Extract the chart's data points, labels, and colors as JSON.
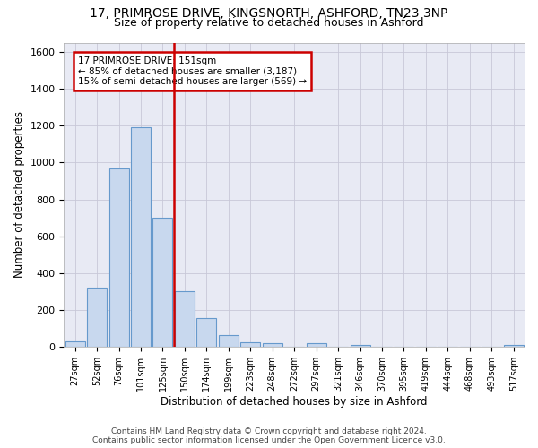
{
  "title1": "17, PRIMROSE DRIVE, KINGSNORTH, ASHFORD, TN23 3NP",
  "title2": "Size of property relative to detached houses in Ashford",
  "xlabel": "Distribution of detached houses by size in Ashford",
  "ylabel": "Number of detached properties",
  "footer1": "Contains HM Land Registry data © Crown copyright and database right 2024.",
  "footer2": "Contains public sector information licensed under the Open Government Licence v3.0.",
  "bar_labels": [
    "27sqm",
    "52sqm",
    "76sqm",
    "101sqm",
    "125sqm",
    "150sqm",
    "174sqm",
    "199sqm",
    "223sqm",
    "248sqm",
    "272sqm",
    "297sqm",
    "321sqm",
    "346sqm",
    "370sqm",
    "395sqm",
    "419sqm",
    "444sqm",
    "468sqm",
    "493sqm",
    "517sqm"
  ],
  "bar_values": [
    30,
    320,
    970,
    1190,
    700,
    300,
    155,
    65,
    25,
    20,
    0,
    20,
    0,
    10,
    0,
    0,
    0,
    0,
    0,
    0,
    10
  ],
  "bar_color": "#c8d8ee",
  "bar_edge_color": "#6699cc",
  "vline_color": "#cc0000",
  "annotation_line1": "17 PRIMROSE DRIVE: 151sqm",
  "annotation_line2": "← 85% of detached houses are smaller (3,187)",
  "annotation_line3": "15% of semi-detached houses are larger (569) →",
  "annotation_box_color": "#cc0000",
  "ylim": [
    0,
    1650
  ],
  "yticks": [
    0,
    200,
    400,
    600,
    800,
    1000,
    1200,
    1400,
    1600
  ],
  "grid_color": "#c8c8d8",
  "bg_color": "#e8eaf4",
  "title1_fontsize": 10,
  "title2_fontsize": 9,
  "xlabel_fontsize": 8.5,
  "ylabel_fontsize": 8.5,
  "footer_fontsize": 6.5
}
